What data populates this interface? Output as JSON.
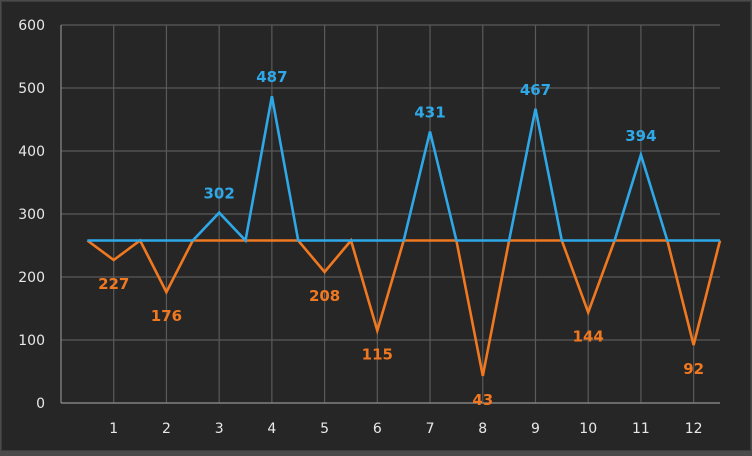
{
  "chart_data": {
    "type": "line",
    "categories": [
      "1",
      "2",
      "3",
      "4",
      "5",
      "6",
      "7",
      "8",
      "9",
      "10",
      "11",
      "12"
    ],
    "ylim": [
      0,
      600
    ],
    "yticks": [
      0,
      100,
      200,
      300,
      400,
      500,
      600
    ],
    "grid": true,
    "baseline": 258,
    "series": [
      {
        "color": "#2fa8e8",
        "x": [
          0.5,
          1,
          1.5,
          2,
          2.5,
          3,
          3.5,
          4,
          4.5,
          5,
          5.5,
          6,
          6.5,
          7,
          7.5,
          8,
          8.5,
          9,
          9.5,
          10,
          10.5,
          11,
          11.5,
          12,
          12.5
        ],
        "y": [
          258,
          258,
          258,
          258,
          258,
          302,
          258,
          487,
          258,
          258,
          258,
          258,
          258,
          431,
          258,
          258,
          258,
          467,
          258,
          258,
          258,
          394,
          258,
          258,
          258
        ],
        "labels": [
          {
            "x": 3,
            "y": 302,
            "text": "302"
          },
          {
            "x": 4,
            "y": 487,
            "text": "487"
          },
          {
            "x": 7,
            "y": 431,
            "text": "431"
          },
          {
            "x": 9,
            "y": 467,
            "text": "467"
          },
          {
            "x": 11,
            "y": 394,
            "text": "394"
          }
        ]
      },
      {
        "color": "#f07820",
        "x": [
          0.5,
          1,
          1.5,
          2,
          2.5,
          3,
          3.5,
          4,
          4.5,
          5,
          5.5,
          6,
          6.5,
          7,
          7.5,
          8,
          8.5,
          9,
          9.5,
          10,
          10.5,
          11,
          11.5,
          12,
          12.5
        ],
        "y": [
          258,
          227,
          258,
          176,
          258,
          258,
          258,
          258,
          258,
          208,
          258,
          115,
          258,
          258,
          258,
          43,
          258,
          258,
          258,
          144,
          258,
          258,
          258,
          92,
          258
        ],
        "labels": [
          {
            "x": 1,
            "y": 227,
            "text": "227"
          },
          {
            "x": 2,
            "y": 176,
            "text": "176"
          },
          {
            "x": 5,
            "y": 208,
            "text": "208"
          },
          {
            "x": 6,
            "y": 115,
            "text": "115"
          },
          {
            "x": 8,
            "y": 43,
            "text": "43"
          },
          {
            "x": 10,
            "y": 144,
            "text": "144"
          },
          {
            "x": 12,
            "y": 92,
            "text": "92"
          }
        ]
      }
    ]
  }
}
